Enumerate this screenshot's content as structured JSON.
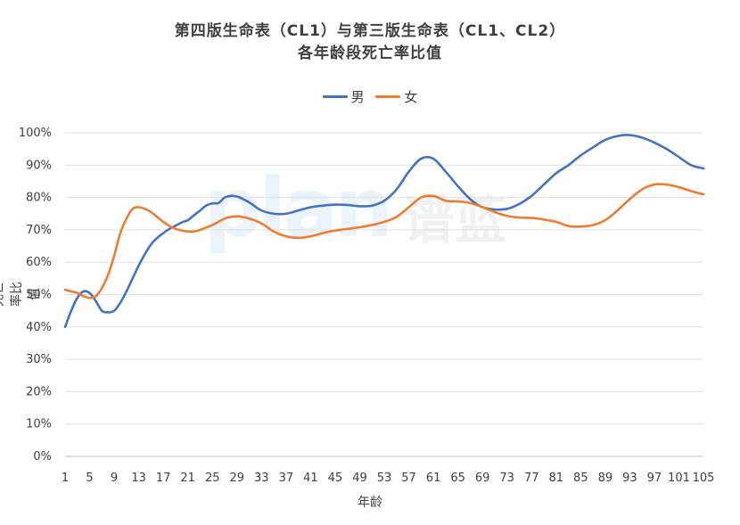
{
  "chart_data": {
    "type": "line",
    "title": "第四版生命表（CL1）与第三版生命表（CL1、CL2）",
    "subtitle": "各年龄段死亡率比值",
    "xlabel": "年龄",
    "ylabel": "死亡率比值",
    "ylim": [
      0,
      100
    ],
    "ytick_labels": [
      "0%",
      "10%",
      "20%",
      "30%",
      "40%",
      "50%",
      "60%",
      "70%",
      "80%",
      "90%",
      "100%"
    ],
    "xtick_labels": [
      "1",
      "5",
      "9",
      "13",
      "17",
      "21",
      "25",
      "29",
      "33",
      "37",
      "41",
      "45",
      "49",
      "53",
      "57",
      "61",
      "65",
      "69",
      "73",
      "77",
      "81",
      "85",
      "89",
      "93",
      "97",
      "101",
      "105"
    ],
    "legend_position": "top",
    "grid": true,
    "watermark": "plan 谱蓝",
    "series": [
      {
        "name": "男",
        "color": "#4472C4",
        "x": [
          1,
          2,
          3,
          4,
          5,
          6,
          7,
          8,
          9,
          10,
          11,
          12,
          13,
          14,
          15,
          16,
          17,
          18,
          19,
          20,
          21,
          22,
          23,
          24,
          25,
          26,
          27,
          28,
          29,
          30,
          31,
          33,
          35,
          37,
          39,
          41,
          43,
          45,
          47,
          49,
          51,
          53,
          55,
          57,
          59,
          61,
          63,
          65,
          67,
          69,
          71,
          73,
          75,
          77,
          79,
          81,
          83,
          85,
          87,
          89,
          91,
          93,
          95,
          97,
          99,
          101,
          103,
          105
        ],
        "values": [
          40,
          45,
          49,
          51,
          50.5,
          48,
          45,
          44.5,
          45,
          47.5,
          51,
          55,
          59,
          62.5,
          65.5,
          67.5,
          69,
          70.3,
          71.3,
          72.3,
          73,
          74.5,
          76,
          77.5,
          78.2,
          78.3,
          80,
          80.5,
          80.3,
          79.5,
          78.5,
          76,
          75,
          75,
          76,
          77,
          77.5,
          77.8,
          77.7,
          77.3,
          77.5,
          79,
          82.5,
          88,
          92,
          92,
          88,
          83.5,
          79.5,
          77,
          76.3,
          76.5,
          78,
          80.5,
          84,
          87.5,
          90,
          93,
          95.5,
          97.8,
          99,
          99.3,
          98.5,
          97,
          95,
          92.5,
          90,
          89
        ]
      },
      {
        "name": "女",
        "color": "#ED7D31",
        "x": [
          1,
          2,
          3,
          4,
          5,
          6,
          7,
          8,
          9,
          10,
          11,
          12,
          13,
          14,
          15,
          16,
          17,
          18,
          19,
          20,
          21,
          22,
          23,
          25,
          27,
          29,
          31,
          33,
          35,
          37,
          39,
          41,
          43,
          45,
          47,
          49,
          51,
          53,
          55,
          57,
          59,
          61,
          63,
          65,
          67,
          69,
          71,
          73,
          75,
          77,
          79,
          81,
          83,
          85,
          87,
          89,
          91,
          93,
          95,
          97,
          99,
          101,
          103,
          105
        ],
        "values": [
          51.5,
          51,
          50.5,
          49.5,
          49,
          49.5,
          52,
          56,
          62,
          69,
          73.5,
          76.5,
          77,
          76.5,
          75.5,
          74,
          72.5,
          71.2,
          70.3,
          69.8,
          69.5,
          69.5,
          70,
          71.5,
          73.5,
          74.2,
          73.5,
          72,
          69.5,
          68,
          67.5,
          68,
          69,
          69.8,
          70.3,
          70.8,
          71.5,
          72.5,
          74,
          77,
          80,
          80.5,
          79,
          78.8,
          78.3,
          77,
          75.5,
          74.3,
          73.8,
          73.7,
          73.2,
          72.5,
          71.2,
          71,
          71.5,
          73,
          76,
          79.5,
          82.5,
          84,
          84,
          83.2,
          82,
          81
        ]
      }
    ]
  }
}
